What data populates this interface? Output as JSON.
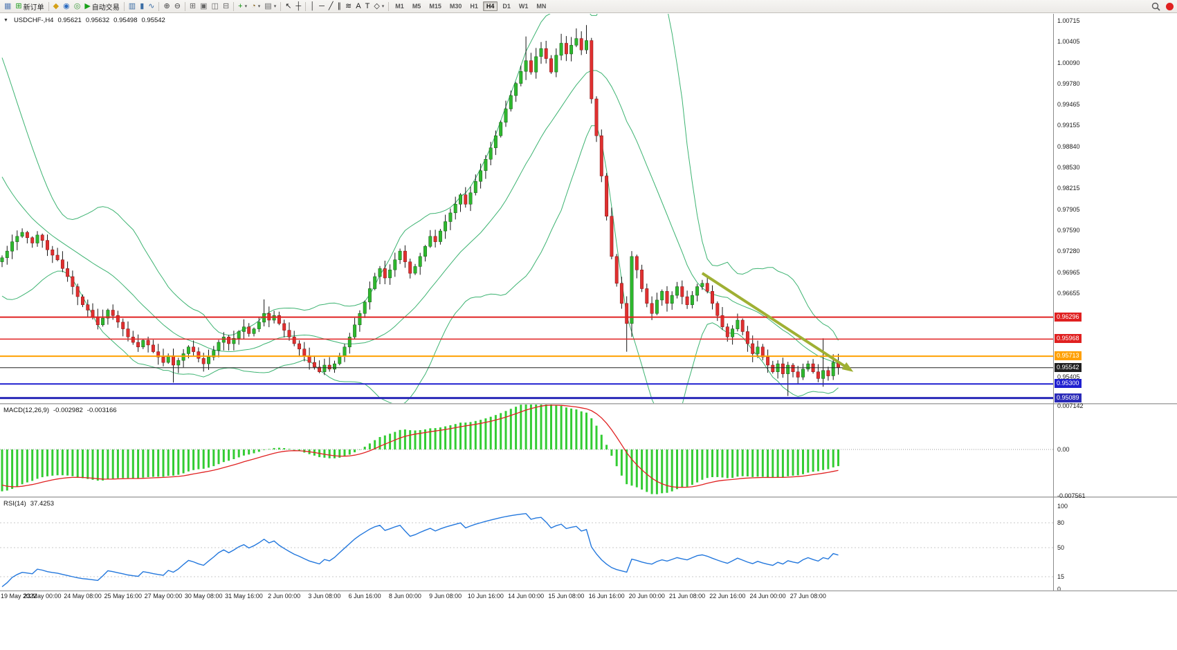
{
  "toolbar": {
    "left_buttons": [
      {
        "name": "chart-window-icon",
        "glyph": "▦",
        "color": "#5a7fb5"
      },
      {
        "name": "new-order-button",
        "glyph": "⊞",
        "color": "#1a9c1a",
        "label": "新订单"
      },
      {
        "sep": true
      },
      {
        "name": "mql5-market-icon",
        "glyph": "◆",
        "color": "#d4a017"
      },
      {
        "name": "signals-icon",
        "glyph": "◉",
        "color": "#2a6bc0"
      },
      {
        "name": "vps-icon",
        "glyph": "◎",
        "color": "#3f9e3f"
      },
      {
        "name": "autotrading-button",
        "glyph": "▶",
        "color": "#18a018",
        "label": "自动交易"
      },
      {
        "sep": true
      },
      {
        "name": "bars-chart-icon",
        "glyph": "▥",
        "color": "#3c6ea5"
      },
      {
        "name": "candlestick-chart-icon",
        "glyph": "▮",
        "color": "#3c6ea5"
      },
      {
        "name": "line-chart-icon",
        "glyph": "∿",
        "color": "#3c6ea5"
      },
      {
        "sep": true
      },
      {
        "name": "zoom-in-icon",
        "glyph": "⊕",
        "color": "#444444"
      },
      {
        "name": "zoom-out-icon",
        "glyph": "⊖",
        "color": "#444444"
      },
      {
        "sep": true
      },
      {
        "name": "tile-windows-icon",
        "glyph": "⊞",
        "color": "#666666"
      },
      {
        "name": "cascade-windows-icon",
        "glyph": "▣",
        "color": "#666666"
      },
      {
        "name": "tile-horizontal-icon",
        "glyph": "◫",
        "color": "#666666"
      },
      {
        "name": "tile-vertical-icon",
        "glyph": "⊟",
        "color": "#666666"
      },
      {
        "sep": true
      },
      {
        "name": "add-indicator-icon",
        "glyph": "+",
        "color": "#0a8f0a",
        "dropdown": true
      },
      {
        "name": "period-icon",
        "glyph": "◔",
        "color": "#8a6a2a",
        "dropdown": true
      },
      {
        "name": "templates-icon",
        "glyph": "▤",
        "color": "#666666",
        "dropdown": true
      },
      {
        "sep": true
      },
      {
        "name": "cursor-icon",
        "glyph": "↖",
        "color": "#222222"
      },
      {
        "name": "crosshair-icon",
        "glyph": "┼",
        "color": "#222222"
      },
      {
        "sep": true
      },
      {
        "name": "vertical-line-icon",
        "glyph": "│",
        "color": "#222222"
      },
      {
        "name": "horizontal-line-icon",
        "glyph": "─",
        "color": "#222222"
      },
      {
        "name": "trendline-icon",
        "glyph": "╱",
        "color": "#222222"
      },
      {
        "name": "channel-icon",
        "glyph": "∥",
        "color": "#222222"
      },
      {
        "name": "fibonacci-icon",
        "glyph": "≋",
        "color": "#222222"
      },
      {
        "name": "text-label-icon",
        "glyph": "A",
        "color": "#222222"
      },
      {
        "name": "text-icon",
        "glyph": "T",
        "color": "#222222"
      },
      {
        "name": "shapes-icon",
        "glyph": "◇",
        "color": "#222222",
        "dropdown": true
      },
      {
        "sep": true
      }
    ],
    "timeframes": {
      "items": [
        "M1",
        "M5",
        "M15",
        "M30",
        "H1",
        "H4",
        "D1",
        "W1",
        "MN"
      ],
      "active": "H4"
    }
  },
  "chart": {
    "header": {
      "dropdown_icon": "▼",
      "symbol": "USDCHF-,H4",
      "open": "0.95621",
      "high": "0.95632",
      "low": "0.95498",
      "close": "0.95542"
    }
  },
  "macd_panel": {
    "title": "MACD(12,26,9)",
    "value": "-0.002982",
    "signal": "-0.003166",
    "axis": [
      {
        "label": "0.007142",
        "v": 0.007142
      },
      {
        "label": "0.00",
        "v": 0
      },
      {
        "label": "-0.007561",
        "v": -0.007561
      }
    ]
  },
  "rsi_panel": {
    "title": "RSI(14)",
    "value": "37.4253",
    "axis": [
      {
        "label": "100",
        "v": 100
      },
      {
        "label": "80",
        "v": 80
      },
      {
        "label": "50",
        "v": 50
      },
      {
        "label": "15",
        "v": 15
      },
      {
        "label": "0",
        "v": 0
      }
    ]
  },
  "chart_data": {
    "type": "candlestick",
    "symbol": "USDCHF-",
    "timeframe": "H4",
    "current_ohlc": {
      "open": 0.95621,
      "high": 0.95632,
      "low": 0.95498,
      "close": 0.95542
    },
    "ylim": [
      0.95013,
      1.00818
    ],
    "y_ticks": [
      1.00715,
      1.00405,
      1.0009,
      0.9978,
      0.99465,
      0.99155,
      0.9884,
      0.9853,
      0.98215,
      0.97905,
      0.9759,
      0.9728,
      0.96965,
      0.96655,
      0.95405
    ],
    "x_labels": [
      "19 May 2022",
      "23 May 00:00",
      "24 May 08:00",
      "25 May 16:00",
      "27 May 00:00",
      "30 May 08:00",
      "31 May 16:00",
      "2 Jun 00:00",
      "3 Jun 08:00",
      "6 Jun 16:00",
      "8 Jun 00:00",
      "9 Jun 08:00",
      "10 Jun 16:00",
      "14 Jun 00:00",
      "15 Jun 08:00",
      "16 Jun 16:00",
      "20 Jun 00:00",
      "21 Jun 08:00",
      "22 Jun 16:00",
      "24 Jun 00:00",
      "27 Jun 08:00"
    ],
    "candles_per_label": 8,
    "pre_closes": [
      1.0008,
      0.9992,
      0.9975,
      0.9958,
      0.9942,
      0.9926,
      0.991,
      0.9892,
      0.9875,
      0.9858,
      0.984,
      0.9822,
      0.9806,
      0.979,
      0.9775,
      0.9762,
      0.975,
      0.974,
      0.973,
      0.9712
    ],
    "closes": [
      0.9718,
      0.9728,
      0.9742,
      0.975,
      0.9756,
      0.9748,
      0.974,
      0.9752,
      0.9744,
      0.973,
      0.9722,
      0.9715,
      0.9702,
      0.969,
      0.9675,
      0.966,
      0.9648,
      0.964,
      0.963,
      0.9618,
      0.9628,
      0.964,
      0.9632,
      0.9622,
      0.9612,
      0.96,
      0.9592,
      0.9585,
      0.9595,
      0.9588,
      0.9578,
      0.957,
      0.9562,
      0.9572,
      0.9558,
      0.9565,
      0.9575,
      0.9585,
      0.9578,
      0.9568,
      0.956,
      0.957,
      0.958,
      0.9592,
      0.96,
      0.959,
      0.9598,
      0.9608,
      0.9615,
      0.9605,
      0.9612,
      0.9622,
      0.9635,
      0.9625,
      0.9632,
      0.962,
      0.961,
      0.96,
      0.959,
      0.9582,
      0.9572,
      0.9562,
      0.9555,
      0.9548,
      0.9558,
      0.9552,
      0.956,
      0.9572,
      0.9585,
      0.96,
      0.9618,
      0.9635,
      0.9652,
      0.9672,
      0.969,
      0.9702,
      0.9688,
      0.97,
      0.9715,
      0.9728,
      0.9712,
      0.9695,
      0.9705,
      0.972,
      0.9735,
      0.975,
      0.9742,
      0.9758,
      0.9772,
      0.9785,
      0.9798,
      0.9812,
      0.9798,
      0.9815,
      0.9832,
      0.9848,
      0.9865,
      0.9882,
      0.99,
      0.992,
      0.994,
      0.996,
      0.9978,
      0.9996,
      1.0012,
      0.9995,
      1.0018,
      1.003,
      1.0015,
      0.9995,
      1.002,
      1.0038,
      1.0022,
      1.0035,
      1.0045,
      1.0028,
      1.0042,
      0.9955,
      0.99,
      0.984,
      0.978,
      0.972,
      0.968,
      0.965,
      0.962,
      0.972,
      0.97,
      0.9672,
      0.965,
      0.9635,
      0.9655,
      0.9668,
      0.965,
      0.9662,
      0.9675,
      0.966,
      0.9648,
      0.9662,
      0.9675,
      0.968,
      0.9668,
      0.965,
      0.9632,
      0.9615,
      0.96,
      0.9612,
      0.9625,
      0.9608,
      0.959,
      0.9575,
      0.9585,
      0.957,
      0.9558,
      0.9548,
      0.956,
      0.9545,
      0.9558,
      0.9548,
      0.954,
      0.9552,
      0.956,
      0.9548,
      0.9538,
      0.955,
      0.9542,
      0.9562,
      0.95542
    ],
    "wick_overrides": {
      "4": [
        0.9762,
        null
      ],
      "34": [
        null,
        0.9532
      ],
      "52": [
        0.9656,
        null
      ],
      "63": [
        null,
        0.9546
      ],
      "104": [
        1.0048,
        null
      ],
      "111": [
        1.0052,
        null
      ],
      "114": [
        1.006,
        null
      ],
      "116": [
        1.0065,
        null
      ],
      "117": [
        1.0046,
        null
      ],
      "124": [
        null,
        0.9578
      ],
      "125": [
        0.9728,
        0.96
      ],
      "156": [
        null,
        0.9512
      ],
      "163": [
        0.9598,
        null
      ]
    },
    "h_lines": [
      {
        "price": 0.96296,
        "color": "#e02020",
        "width": 2
      },
      {
        "price": 0.95968,
        "color": "#e02020",
        "width": 1.5
      },
      {
        "price": 0.95713,
        "color": "#ffa000",
        "width": 2
      },
      {
        "price": 0.95542,
        "color": "#202020",
        "width": 1
      },
      {
        "price": 0.953,
        "color": "#1f1fd0",
        "width": 2
      },
      {
        "price": 0.95089,
        "color": "#2a2ab8",
        "width": 3
      }
    ],
    "trend_arrow": {
      "from": {
        "index": 139,
        "price": 0.9695
      },
      "to": {
        "index": 169,
        "price": 0.9548
      },
      "color": "#9fb033",
      "width": 4
    },
    "indicators": {
      "bollinger": {
        "period": 20,
        "deviation": 2,
        "color": "#3CB371"
      },
      "macd": {
        "fast": 12,
        "slow": 26,
        "signal_period": 9,
        "value": -0.002982,
        "signal_value": -0.003166,
        "ylim": [
          -0.007561,
          0.007142
        ],
        "hist_color": "#33cc33",
        "signal_color": "#e02020"
      },
      "rsi": {
        "period": 14,
        "value": 37.4253,
        "levels": [
          80,
          50,
          15
        ],
        "range": [
          0,
          100
        ],
        "color": "#2277dd"
      }
    }
  }
}
